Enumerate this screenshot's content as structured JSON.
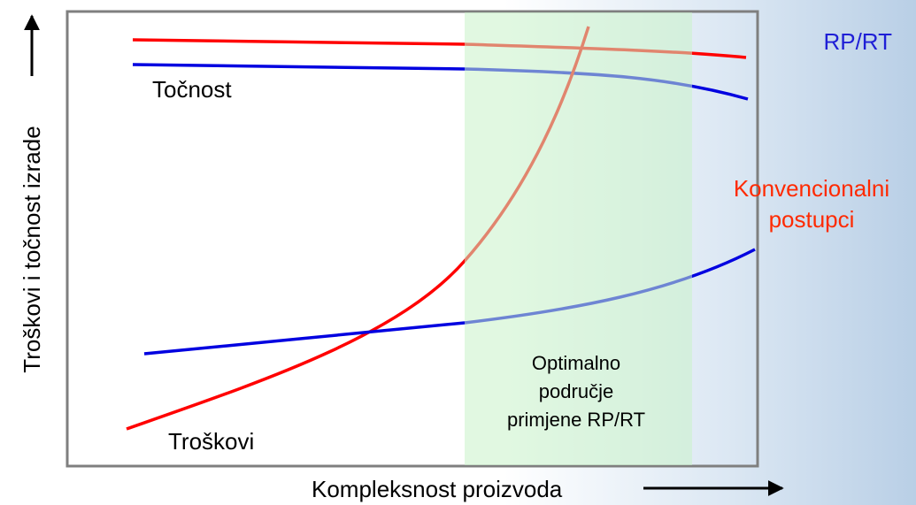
{
  "diagram": {
    "y_axis_label": "Troškovi i točnost izrade",
    "x_axis_label": "Kompleksnost proizvoda",
    "curves": {
      "accuracy": "Točnost",
      "costs": "Troškovi"
    },
    "legend": {
      "rp_rt": "RP/RT",
      "conventional": [
        "Konvencionalni",
        "postupci"
      ]
    },
    "region": [
      "Optimalno",
      "područje",
      "primjene RP/RT"
    ]
  }
}
